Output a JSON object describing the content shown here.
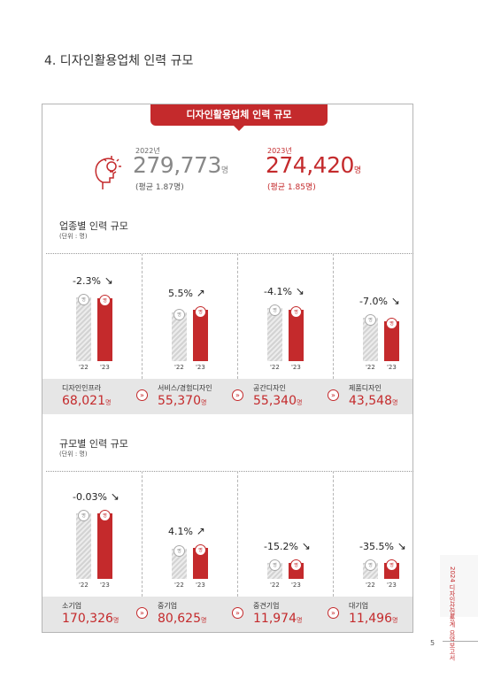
{
  "page": {
    "section_title": "4. 디자인활용업체 인력 규모",
    "page_number": "5",
    "side_note": "2024 디자인산업통계 요약보고서"
  },
  "banner": {
    "label": "디자인활용업체 인력 규모"
  },
  "totals": {
    "y2022": {
      "year": "2022년",
      "value": "279,773",
      "unit": "명",
      "avg": "(평균 1.87명)"
    },
    "y2023": {
      "year": "2023년",
      "value": "274,420",
      "unit": "명",
      "avg": "(평균 1.85명)"
    }
  },
  "bubble_unit": "명",
  "year_labels": [
    "'22",
    "'23"
  ],
  "colors": {
    "accent": "#c42a2c",
    "band": "#e6e6e6",
    "grey_bar": "#d3d3d3"
  },
  "icon": "person-lightbulb-icon",
  "chart_data": [
    {
      "type": "bar",
      "title": "업종별 인력 규모",
      "unit_label": "(단위 : 명)",
      "categories": [
        "디자인인프라",
        "서비스/경험디자인",
        "공간디자인",
        "제품디자인"
      ],
      "change": [
        "-2.3%",
        "5.5%",
        "-4.1%",
        "-7.0%"
      ],
      "direction": [
        "down",
        "up",
        "down",
        "down"
      ],
      "values_2023": [
        68021,
        55370,
        55340,
        43548
      ],
      "value_labels": [
        "68,021",
        "55,370",
        "55,340",
        "43,548"
      ],
      "series": [
        {
          "name": "'22",
          "values": [
            69620,
            52483,
            57706,
            46826
          ]
        },
        {
          "name": "'23",
          "values": [
            68021,
            55370,
            55340,
            43548
          ]
        }
      ],
      "ylim": [
        0,
        75000
      ]
    },
    {
      "type": "bar",
      "title": "규모별 인력 규모",
      "unit_label": "(단위 : 명)",
      "categories": [
        "소기업",
        "중기업",
        "중견기업",
        "대기업"
      ],
      "change": [
        "-0.03%",
        "4.1%",
        "-15.2%",
        "-35.5%"
      ],
      "direction": [
        "down",
        "up",
        "down",
        "down"
      ],
      "values_2023": [
        170326,
        80625,
        11974,
        11496
      ],
      "value_labels": [
        "170,326",
        "80,625",
        "11,974",
        "11,496"
      ],
      "series": [
        {
          "name": "'22",
          "values": [
            170377,
            77449,
            14120,
            17827
          ]
        },
        {
          "name": "'23",
          "values": [
            170326,
            80625,
            11974,
            11496
          ]
        }
      ],
      "ylim": [
        0,
        180000
      ]
    }
  ]
}
